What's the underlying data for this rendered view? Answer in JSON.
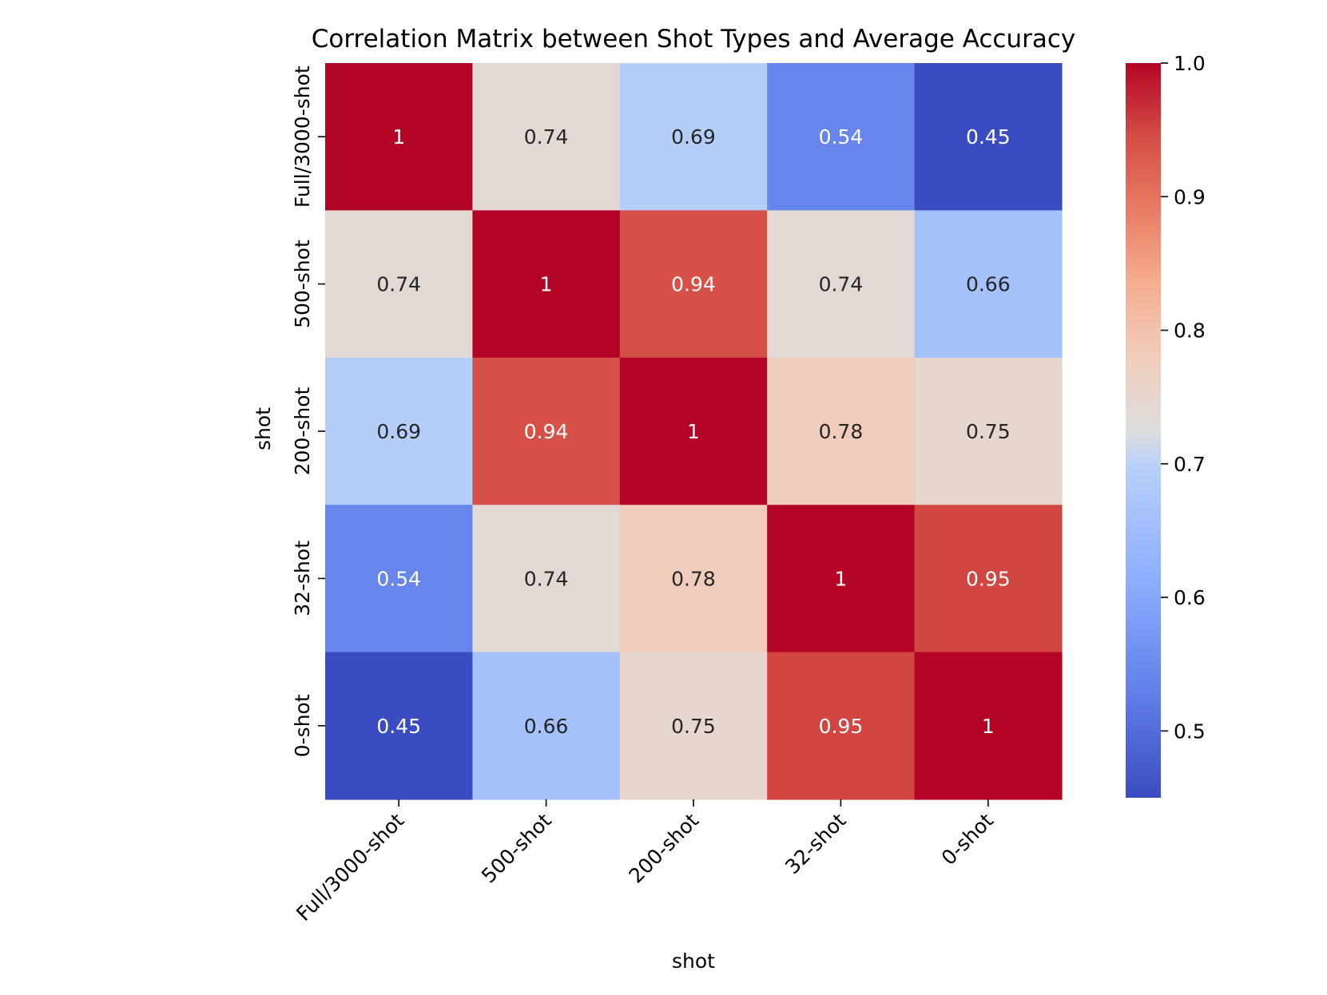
{
  "chart_data": {
    "type": "heatmap",
    "title": "Correlation Matrix between Shot Types and Average Accuracy",
    "xlabel": "shot",
    "ylabel": "shot",
    "x_categories": [
      "Full/3000-shot",
      "500-shot",
      "200-shot",
      "32-shot",
      "0-shot"
    ],
    "y_categories": [
      "Full/3000-shot",
      "500-shot",
      "200-shot",
      "32-shot",
      "0-shot"
    ],
    "values": [
      [
        1,
        0.74,
        0.69,
        0.54,
        0.45
      ],
      [
        0.74,
        1,
        0.94,
        0.74,
        0.66
      ],
      [
        0.69,
        0.94,
        1,
        0.78,
        0.75
      ],
      [
        0.54,
        0.74,
        0.78,
        1,
        0.95
      ],
      [
        0.45,
        0.66,
        0.75,
        0.95,
        1
      ]
    ],
    "cell_labels": [
      [
        "1",
        "0.74",
        "0.69",
        "0.54",
        "0.45"
      ],
      [
        "0.74",
        "1",
        "0.94",
        "0.74",
        "0.66"
      ],
      [
        "0.69",
        "0.94",
        "1",
        "0.78",
        "0.75"
      ],
      [
        "0.54",
        "0.74",
        "0.78",
        "1",
        "0.95"
      ],
      [
        "0.45",
        "0.66",
        "0.75",
        "0.95",
        "1"
      ]
    ],
    "colormap": "coolwarm",
    "colorbar": {
      "range": [
        0.45,
        1.0
      ],
      "ticks": [
        0.5,
        0.6,
        0.7,
        0.8,
        0.9,
        1.0
      ],
      "tick_labels": [
        "0.5",
        "0.6",
        "0.7",
        "0.8",
        "0.9",
        "1.0"
      ]
    },
    "colors": {
      "low": "#3b4cc0",
      "mid": "#dddddd",
      "high": "#b40426"
    }
  }
}
